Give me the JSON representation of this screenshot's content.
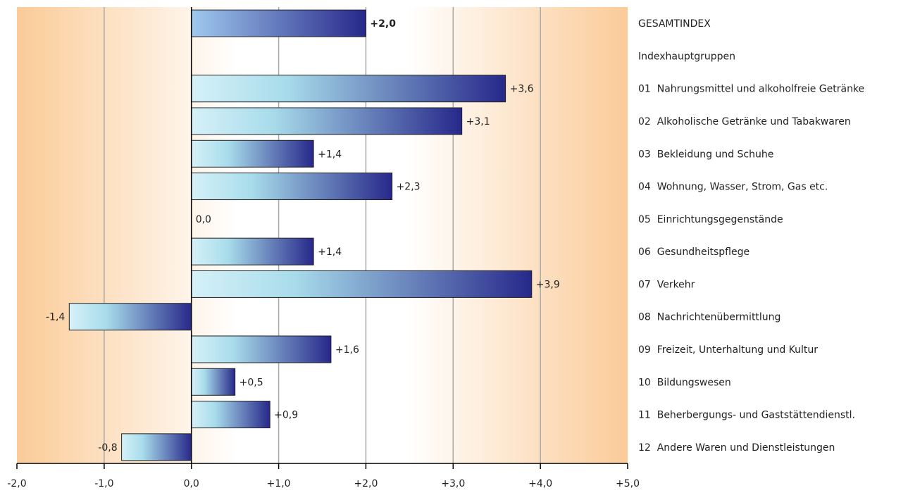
{
  "chart_data": {
    "type": "bar",
    "orientation": "horizontal",
    "title": "",
    "xlabel": "",
    "ylabel": "",
    "xlim": [
      -2.0,
      5.0
    ],
    "grid": true,
    "legend": "none",
    "ticks": [
      "-2,0",
      "-1,0",
      "0,0",
      "+1,0",
      "+2,0",
      "+3,0",
      "+4,0",
      "+5,0"
    ],
    "categories": [
      "GESAMTINDEX",
      "Indexhauptgruppen",
      "01  Nahrungsmittel und alkoholfreie Getränke",
      "02  Alkoholische Getränke und Tabakwaren",
      "03  Bekleidung und Schuhe",
      "04  Wohnung, Wasser, Strom, Gas etc.",
      "05  Einrichtungsgegenstände",
      "06  Gesundheitspflege",
      "07  Verkehr",
      "08  Nachrichtenübermittlung",
      "09  Freizeit, Unterhaltung und Kultur",
      "10  Bildungswesen",
      "11  Beherbergungs- und Gaststättendienstl.",
      "12  Andere Waren und Dienstleistungen"
    ],
    "values": [
      2.0,
      null,
      3.6,
      3.1,
      1.4,
      2.3,
      0.0,
      1.4,
      3.9,
      -1.4,
      1.6,
      0.5,
      0.9,
      -0.8
    ],
    "value_labels": [
      "+2,0",
      "",
      "+3,6",
      "+3,1",
      "+1,4",
      "+2,3",
      "0,0",
      "+1,4",
      "+3,9",
      "-1,4",
      "+1,6",
      "+0,5",
      "+0,9",
      "-0,8"
    ],
    "colors": {
      "background_edge": "#FBCB98",
      "background_center": "#FFFFFF",
      "bar_light": "#D6F1F8",
      "bar_mid": "#A8DCEB",
      "bar_dark": "#27288A",
      "total_bar_light": "#9FC9EE",
      "grid": "#A8A8A8",
      "axis": "#000000"
    }
  }
}
